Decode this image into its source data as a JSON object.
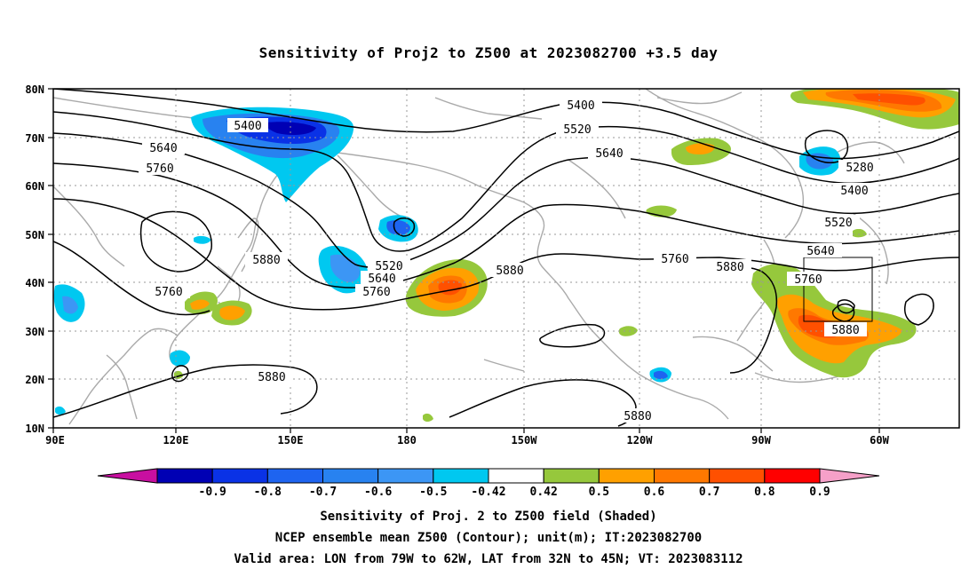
{
  "title": "Sensitivity of Proj2 to Z500 at 2023082700 +3.5 day",
  "lat_labels": [
    "80N",
    "70N",
    "60N",
    "50N",
    "40N",
    "30N",
    "20N",
    "10N"
  ],
  "lon_labels": [
    "90E",
    "120E",
    "150E",
    "180",
    "150W",
    "120W",
    "90W",
    "60W"
  ],
  "contour_labels": {
    "c5400a": "5400",
    "c5400b": "5400",
    "c5400c": "5400",
    "c5520a": "5520",
    "c5520b": "5520",
    "c5520c": "5520",
    "c5640a": "5640",
    "c5640b": "5640",
    "c5640c": "5640",
    "c5760a": "5760",
    "c5760b": "5760",
    "c5760c": "5760",
    "c5760d": "5760",
    "c5760e": "5760",
    "c5880a": "5880",
    "c5880b": "5880",
    "c5880c": "5880",
    "c5880d": "5880",
    "c5880e": "5880",
    "c5880f": "5880",
    "c5880g": "5880",
    "c5280": "5280"
  },
  "colorbar": {
    "labels": [
      "-0.9",
      "-0.8",
      "-0.7",
      "-0.6",
      "-0.5",
      "-0.42",
      "0.42",
      "0.5",
      "0.6",
      "0.7",
      "0.8",
      "0.9"
    ],
    "colors": [
      "#c80fa0",
      "#0000b4",
      "#0a32e6",
      "#1e64f0",
      "#2882f0",
      "#3c96f5",
      "#00c8f0",
      "#ffffff",
      "#96c83c",
      "#ffa000",
      "#ff7800",
      "#ff5000",
      "#ff0000",
      "#f5a0c8"
    ]
  },
  "footer": {
    "line1": "Sensitivity of Proj. 2 to Z500 field (Shaded)",
    "line2": "NCEP ensemble mean Z500 (Contour); unit(m); IT:2023082700",
    "line3": "Valid area: LON from 79W to 62W, LAT from 32N to 45N; VT: 2023083112"
  }
}
